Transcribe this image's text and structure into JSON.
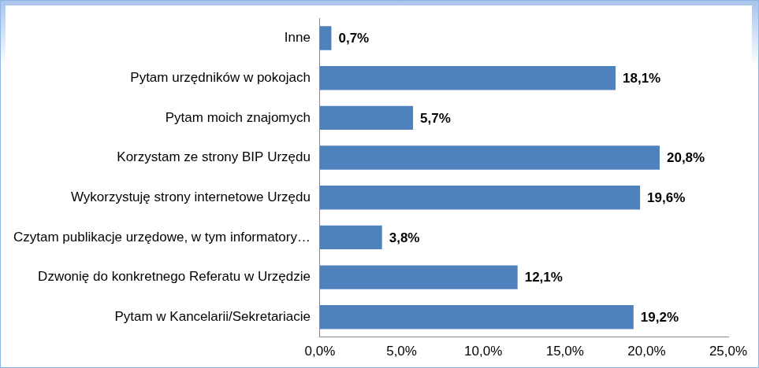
{
  "chart_data": {
    "type": "bar",
    "orientation": "horizontal",
    "categories": [
      "Inne",
      "Pytam urzędników w pokojach",
      "Pytam moich znajomych",
      "Korzystam ze strony BIP Urzędu",
      "Wykorzystuję strony internetowe Urzędu",
      "Czytam publikacje urzędowe, w tym informatory…",
      "Dzwonię do konkretnego Referatu w Urzędzie",
      "Pytam w Kancelarii/Sekretariacie"
    ],
    "values": [
      0.7,
      18.1,
      5.7,
      20.8,
      19.6,
      3.8,
      12.1,
      19.2
    ],
    "value_labels": [
      "0,7%",
      "18,1%",
      "5,7%",
      "20,8%",
      "19,6%",
      "3,8%",
      "12,1%",
      "19,2%"
    ],
    "color": "#4f81bd",
    "xlim": [
      0,
      25
    ],
    "xticks": [
      {
        "value": 0,
        "label": "0,0%"
      },
      {
        "value": 5,
        "label": "5,0%"
      },
      {
        "value": 10,
        "label": "10,0%"
      },
      {
        "value": 15,
        "label": "15,0%"
      },
      {
        "value": 20,
        "label": "20,0%"
      },
      {
        "value": 25,
        "label": "25,0%"
      }
    ],
    "grid": false,
    "data_labels": true
  }
}
